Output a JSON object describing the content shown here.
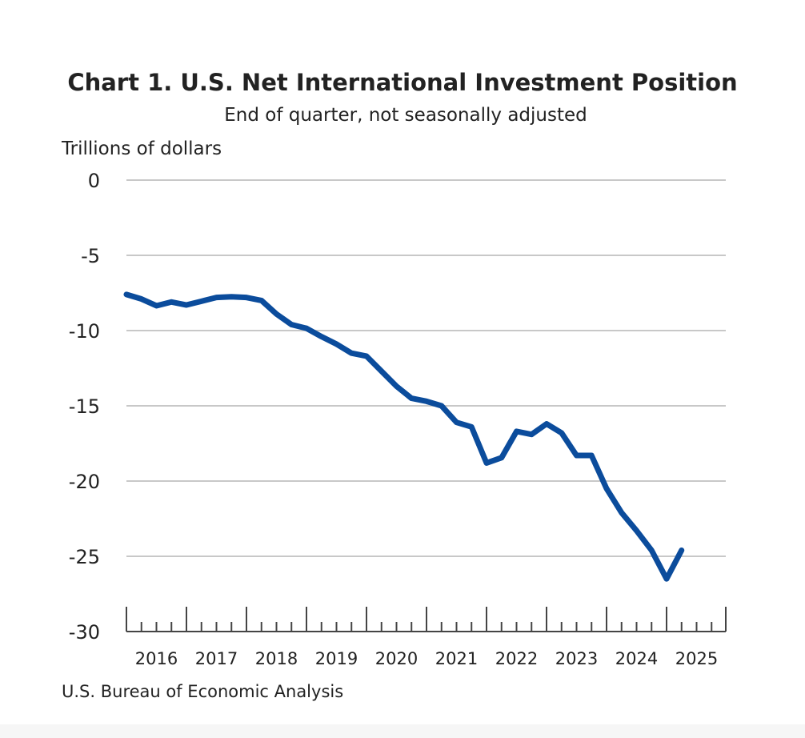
{
  "chart_data": {
    "type": "line",
    "title": "Chart 1. U.S. Net International Investment Position",
    "subtitle": "End of quarter, not seasonally adjusted",
    "ylabel": "Trillions of dollars",
    "xlabel": "",
    "source": "U.S. Bureau of Economic Analysis",
    "ylim": [
      -30,
      0
    ],
    "yticks": [
      "0",
      "-5",
      "-10",
      "-15",
      "-20",
      "-25",
      "-30"
    ],
    "ytick_values": [
      0,
      -5,
      -10,
      -15,
      -20,
      -25,
      -30
    ],
    "xtick_labels": [
      "2016",
      "2017",
      "2018",
      "2019",
      "2020",
      "2021",
      "2022",
      "2023",
      "2024",
      "2025"
    ],
    "grid": true,
    "line_color": "#0b4c9c",
    "series": [
      {
        "name": "U.S. net international investment position",
        "x": [
          "2015Q4",
          "2016Q1",
          "2016Q2",
          "2016Q3",
          "2016Q4",
          "2017Q1",
          "2017Q2",
          "2017Q3",
          "2017Q4",
          "2018Q1",
          "2018Q2",
          "2018Q3",
          "2018Q4",
          "2019Q1",
          "2019Q2",
          "2019Q3",
          "2019Q4",
          "2020Q1",
          "2020Q2",
          "2020Q3",
          "2020Q4",
          "2021Q1",
          "2021Q2",
          "2021Q3",
          "2021Q4",
          "2022Q1",
          "2022Q2",
          "2022Q3",
          "2022Q4",
          "2023Q1",
          "2023Q2",
          "2023Q3",
          "2023Q4",
          "2024Q1",
          "2024Q2",
          "2024Q3",
          "2024Q4",
          "2025Q1"
        ],
        "values": [
          -7.6,
          -7.9,
          -8.35,
          -8.1,
          -8.3,
          -8.05,
          -7.8,
          -7.75,
          -7.8,
          -8.0,
          -8.9,
          -9.6,
          -9.85,
          -10.4,
          -10.9,
          -11.5,
          -11.7,
          -12.7,
          -13.7,
          -14.5,
          -14.7,
          -15.0,
          -16.1,
          -16.4,
          -18.8,
          -18.45,
          -16.7,
          -16.9,
          -16.2,
          -16.8,
          -18.3,
          -18.3,
          -20.5,
          -22.1,
          -23.3,
          -24.6,
          -26.5,
          -24.6
        ]
      }
    ]
  }
}
